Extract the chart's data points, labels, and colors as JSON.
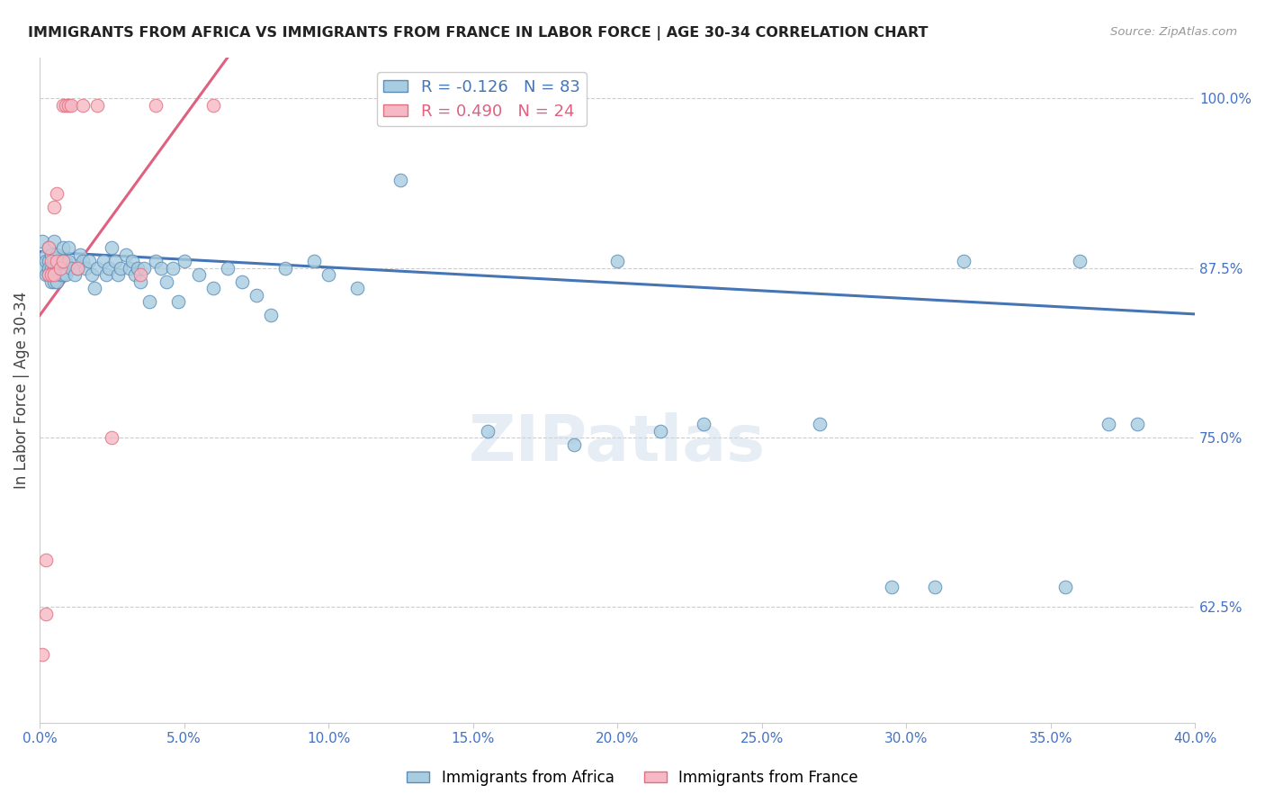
{
  "title": "IMMIGRANTS FROM AFRICA VS IMMIGRANTS FROM FRANCE IN LABOR FORCE | AGE 30-34 CORRELATION CHART",
  "source": "Source: ZipAtlas.com",
  "ylabel": "In Labor Force | Age 30-34",
  "legend_africa": "Immigrants from Africa",
  "legend_france": "Immigrants from France",
  "R_africa": -0.126,
  "N_africa": 83,
  "R_france": 0.49,
  "N_france": 24,
  "color_africa_fill": "#a8cce0",
  "color_africa_edge": "#5b8db8",
  "color_france_fill": "#f5b8c4",
  "color_france_edge": "#e07080",
  "color_africa_line": "#4575b4",
  "color_france_line": "#e06080",
  "color_axis_labels": "#4472c4",
  "color_ylabel": "#444444",
  "color_source": "#999999",
  "watermark": "ZIPatlas",
  "xlim": [
    0.0,
    0.4
  ],
  "ylim": [
    0.54,
    1.03
  ],
  "africa_x": [
    0.001,
    0.001,
    0.002,
    0.002,
    0.002,
    0.003,
    0.003,
    0.003,
    0.003,
    0.004,
    0.004,
    0.004,
    0.005,
    0.005,
    0.005,
    0.005,
    0.006,
    0.006,
    0.006,
    0.007,
    0.007,
    0.008,
    0.008,
    0.008,
    0.009,
    0.009,
    0.01,
    0.01,
    0.011,
    0.012,
    0.013,
    0.014,
    0.015,
    0.016,
    0.017,
    0.018,
    0.019,
    0.02,
    0.022,
    0.023,
    0.024,
    0.025,
    0.026,
    0.027,
    0.028,
    0.03,
    0.031,
    0.032,
    0.033,
    0.034,
    0.035,
    0.036,
    0.038,
    0.04,
    0.042,
    0.044,
    0.046,
    0.048,
    0.05,
    0.055,
    0.06,
    0.065,
    0.07,
    0.075,
    0.08,
    0.085,
    0.095,
    0.1,
    0.11,
    0.125,
    0.155,
    0.185,
    0.2,
    0.215,
    0.23,
    0.27,
    0.295,
    0.31,
    0.32,
    0.355,
    0.36,
    0.37,
    0.38
  ],
  "africa_y": [
    0.895,
    0.875,
    0.885,
    0.87,
    0.88,
    0.89,
    0.88,
    0.875,
    0.87,
    0.885,
    0.875,
    0.865,
    0.895,
    0.88,
    0.875,
    0.865,
    0.885,
    0.875,
    0.865,
    0.88,
    0.87,
    0.89,
    0.88,
    0.87,
    0.88,
    0.87,
    0.89,
    0.88,
    0.875,
    0.87,
    0.875,
    0.885,
    0.88,
    0.875,
    0.88,
    0.87,
    0.86,
    0.875,
    0.88,
    0.87,
    0.875,
    0.89,
    0.88,
    0.87,
    0.875,
    0.885,
    0.875,
    0.88,
    0.87,
    0.875,
    0.865,
    0.875,
    0.85,
    0.88,
    0.875,
    0.865,
    0.875,
    0.85,
    0.88,
    0.87,
    0.86,
    0.875,
    0.865,
    0.855,
    0.84,
    0.875,
    0.88,
    0.87,
    0.86,
    0.94,
    0.755,
    0.745,
    0.88,
    0.755,
    0.76,
    0.76,
    0.64,
    0.64,
    0.88,
    0.64,
    0.88,
    0.76,
    0.76
  ],
  "france_x": [
    0.001,
    0.002,
    0.002,
    0.003,
    0.003,
    0.004,
    0.004,
    0.005,
    0.005,
    0.006,
    0.006,
    0.007,
    0.008,
    0.008,
    0.009,
    0.01,
    0.011,
    0.013,
    0.015,
    0.02,
    0.025,
    0.035,
    0.04,
    0.06
  ],
  "france_y": [
    0.59,
    0.62,
    0.66,
    0.87,
    0.89,
    0.87,
    0.88,
    0.92,
    0.87,
    0.93,
    0.88,
    0.875,
    0.88,
    0.995,
    0.995,
    0.995,
    0.995,
    0.875,
    0.995,
    0.995,
    0.75,
    0.87,
    0.995,
    0.995
  ],
  "africa_line_x": [
    0.0,
    0.4
  ],
  "africa_line_y": [
    0.887,
    0.841
  ],
  "france_line_x": [
    0.0,
    0.065
  ],
  "france_line_y": [
    0.84,
    1.03
  ]
}
